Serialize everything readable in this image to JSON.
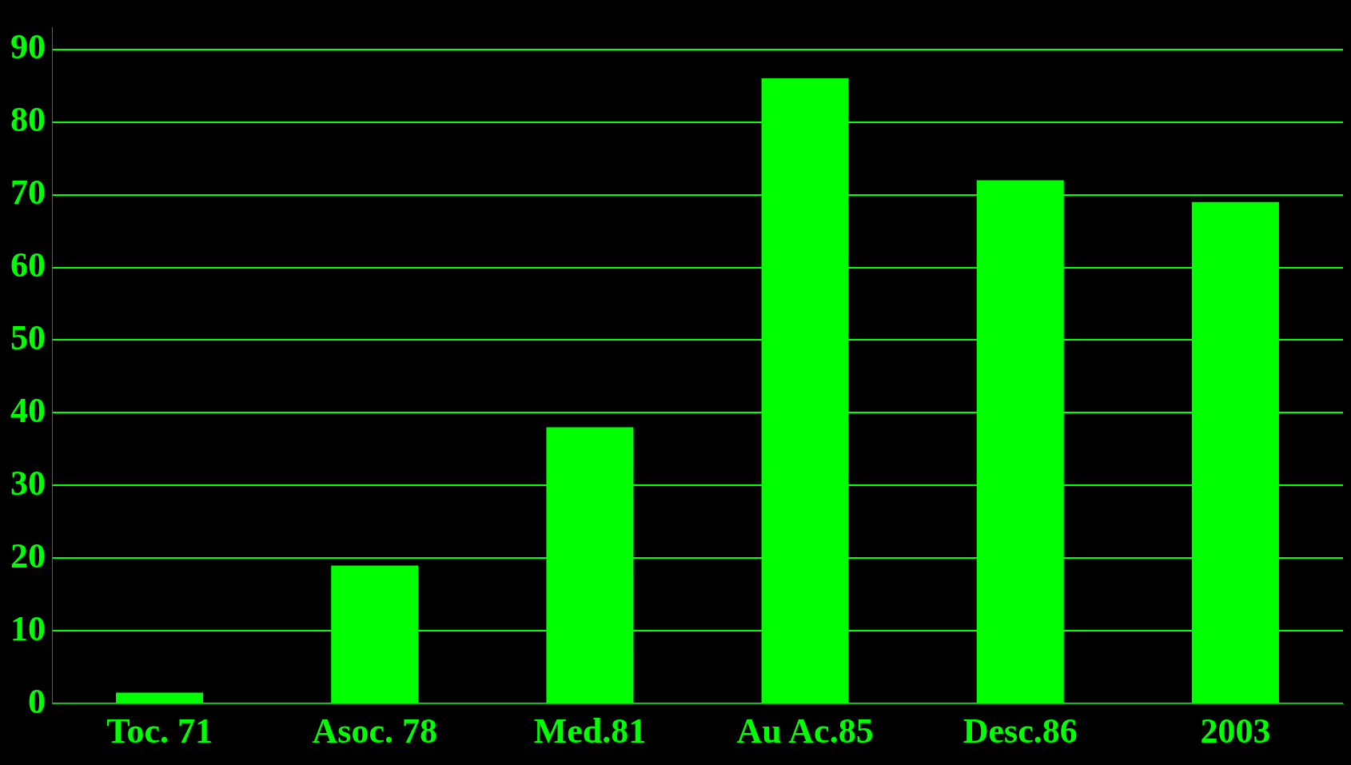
{
  "chart_data": {
    "type": "bar",
    "categories": [
      "Toc. 71",
      "Asoc. 78",
      "Med.81",
      "Au Ac.85",
      "Desc.86",
      "2003"
    ],
    "values": [
      1.5,
      19,
      38,
      86,
      72,
      69
    ],
    "color": "#00ff00",
    "ylim": [
      0,
      93
    ],
    "yticks": [
      0,
      10,
      20,
      30,
      40,
      50,
      60,
      70,
      80,
      90
    ],
    "grid": "y",
    "legend": false
  }
}
